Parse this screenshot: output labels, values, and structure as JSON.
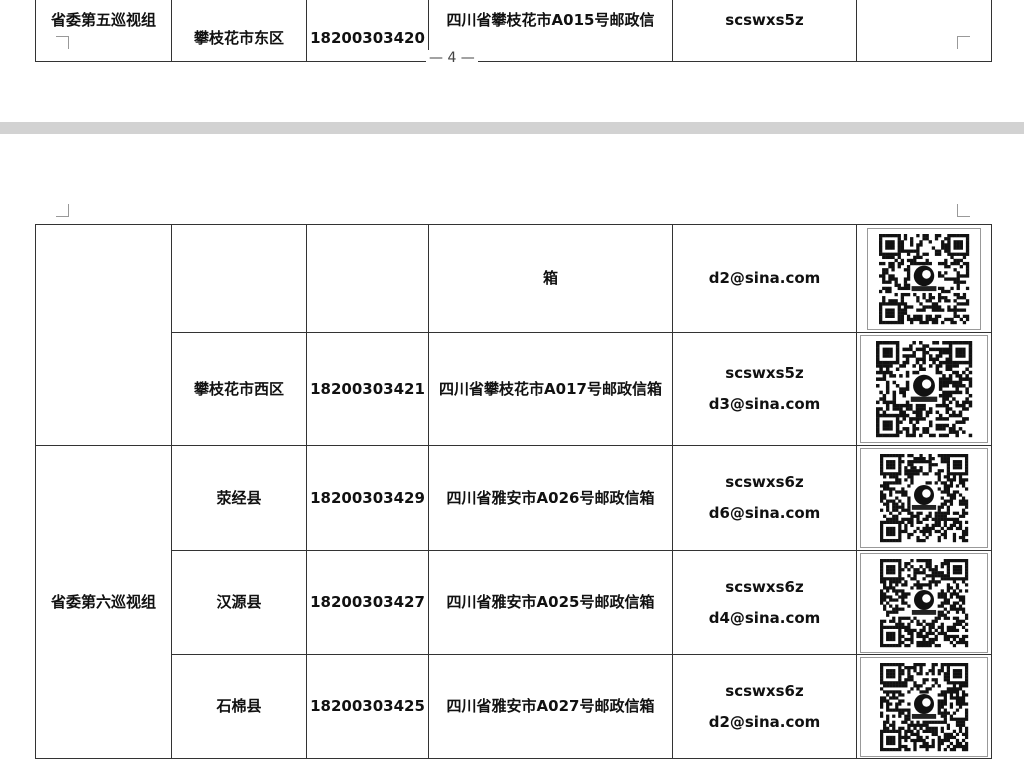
{
  "page_number": "— 4 —",
  "top_table": {
    "rows": [
      {
        "group": "省委第五巡视组",
        "area": "攀枝花市东区",
        "phone": "18200303420",
        "mailbox": "四川省攀枝花市A015号邮政信",
        "email": "scswxs5z"
      }
    ]
  },
  "bottom_table": {
    "rows": [
      {
        "area": "",
        "phone": "",
        "mailbox": "箱",
        "email": [
          "d2@sina.com"
        ],
        "qr": "qr-code-icon"
      },
      {
        "area": "攀枝花市西区",
        "phone": "18200303421",
        "mailbox": "四川省攀枝花市A017号邮政信箱",
        "email": [
          "scswxs5z",
          "d3@sina.com"
        ],
        "qr": "qr-code-icon"
      },
      {
        "group": "省委第六巡视组",
        "area": "荥经县",
        "phone": "18200303429",
        "mailbox": "四川省雅安市A026号邮政信箱",
        "email": [
          "scswxs6z",
          "d6@sina.com"
        ],
        "qr": "qr-code-icon"
      },
      {
        "area": "汉源县",
        "phone": "18200303427",
        "mailbox": "四川省雅安市A025号邮政信箱",
        "email": [
          "scswxs6z",
          "d4@sina.com"
        ],
        "qr": "qr-code-icon"
      },
      {
        "area": "石棉县",
        "phone": "18200303425",
        "mailbox": "四川省雅安市A027号邮政信箱",
        "email": [
          "scswxs6z",
          "d2@sina.com"
        ],
        "qr": "qr-code-icon"
      }
    ]
  }
}
